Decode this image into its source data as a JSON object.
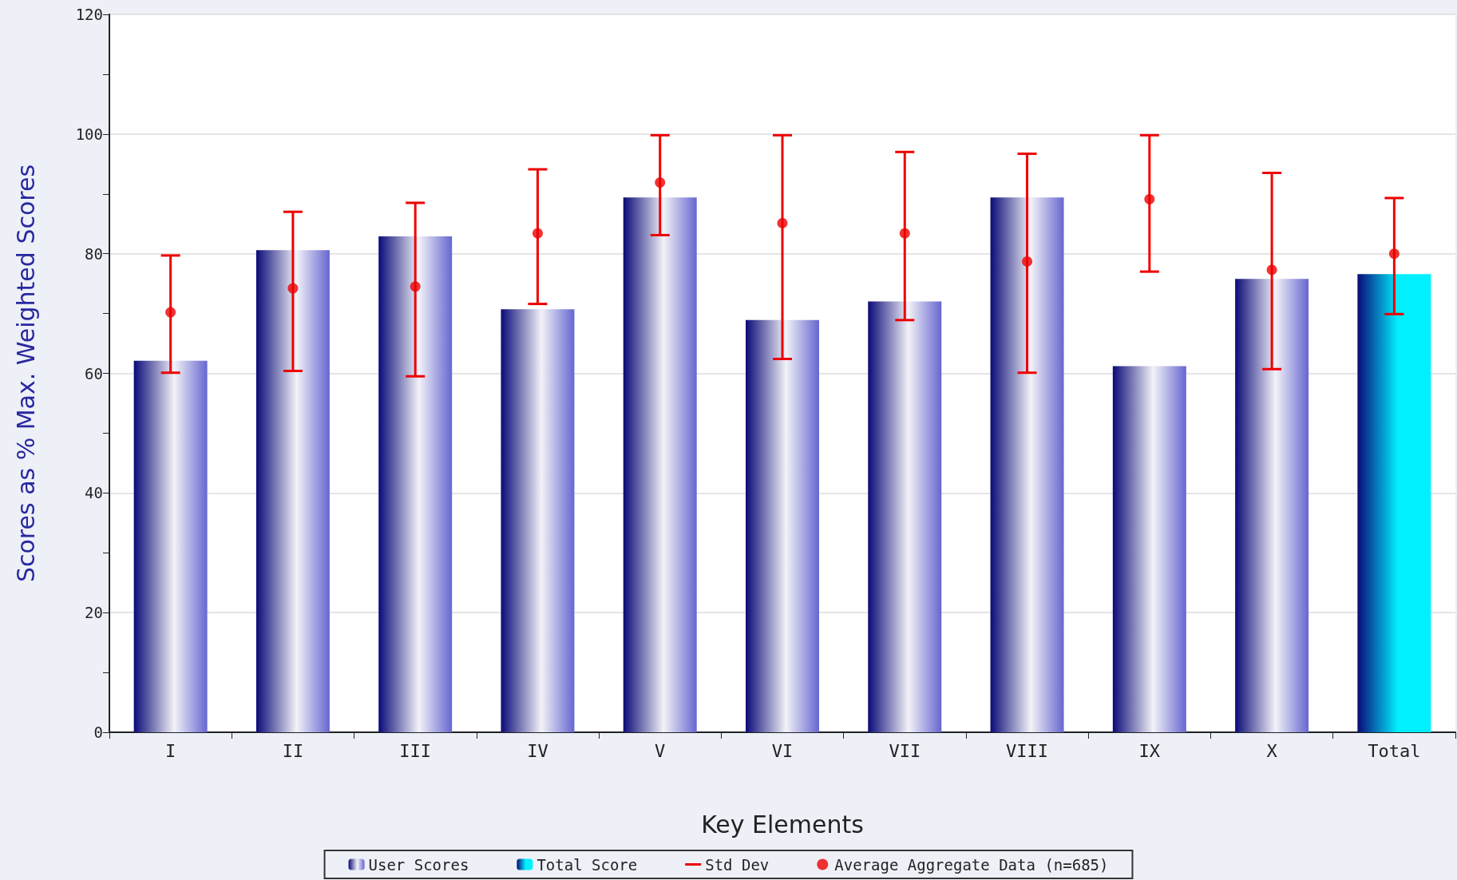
{
  "chart_data": {
    "type": "bar",
    "xlabel": "Key Elements",
    "ylabel": "Scores as % Max. Weighted Scores",
    "categories": [
      "I",
      "II",
      "III",
      "IV",
      "V",
      "VI",
      "VII",
      "VIII",
      "IX",
      "X",
      "Total"
    ],
    "series": [
      {
        "name": "User Scores",
        "color": "#1a1a8c",
        "values": [
          62.1,
          80.6,
          82.9,
          70.7,
          89.4,
          68.9,
          72.0,
          89.4,
          61.2,
          75.8,
          null
        ]
      },
      {
        "name": "Total Score",
        "color": "#00f0ff",
        "values": [
          null,
          null,
          null,
          null,
          null,
          null,
          null,
          null,
          null,
          null,
          76.6
        ]
      },
      {
        "name": "Average Aggregate Data (n=685)",
        "type": "scatter",
        "color": "#ee0000",
        "marker": "circle",
        "x": [
          "I",
          "II",
          "III",
          "IV",
          "V",
          "VI",
          "VII",
          "VIII",
          "IX",
          "X",
          "Total"
        ],
        "values": [
          70.2,
          74.2,
          74.5,
          83.4,
          91.9,
          85.1,
          83.4,
          78.7,
          89.1,
          77.3,
          80.0
        ],
        "errors": [
          [
            60.1,
            79.7
          ],
          [
            60.4,
            87.0
          ],
          [
            59.5,
            88.5
          ],
          [
            71.6,
            94.1
          ],
          [
            83.1,
            99.8
          ],
          [
            62.4,
            99.8
          ],
          [
            68.9,
            97.0
          ],
          [
            60.1,
            96.7
          ],
          [
            77.0,
            99.8
          ],
          [
            60.7,
            93.5
          ],
          [
            69.9,
            89.3
          ]
        ]
      }
    ],
    "annotations": [
      "Std Dev"
    ],
    "ylim": [
      0,
      120
    ],
    "yticks": [
      0,
      {
        "value": 10,
        "label": null
      },
      20,
      {
        "value": 30,
        "label": null
      },
      40,
      {
        "value": 50,
        "label": null
      },
      60,
      {
        "value": 70,
        "label": null
      },
      80,
      {
        "value": 90,
        "label": null
      },
      100,
      {
        "value": 110,
        "label": null
      },
      120
    ],
    "grid": "y",
    "legend": "bottom"
  }
}
